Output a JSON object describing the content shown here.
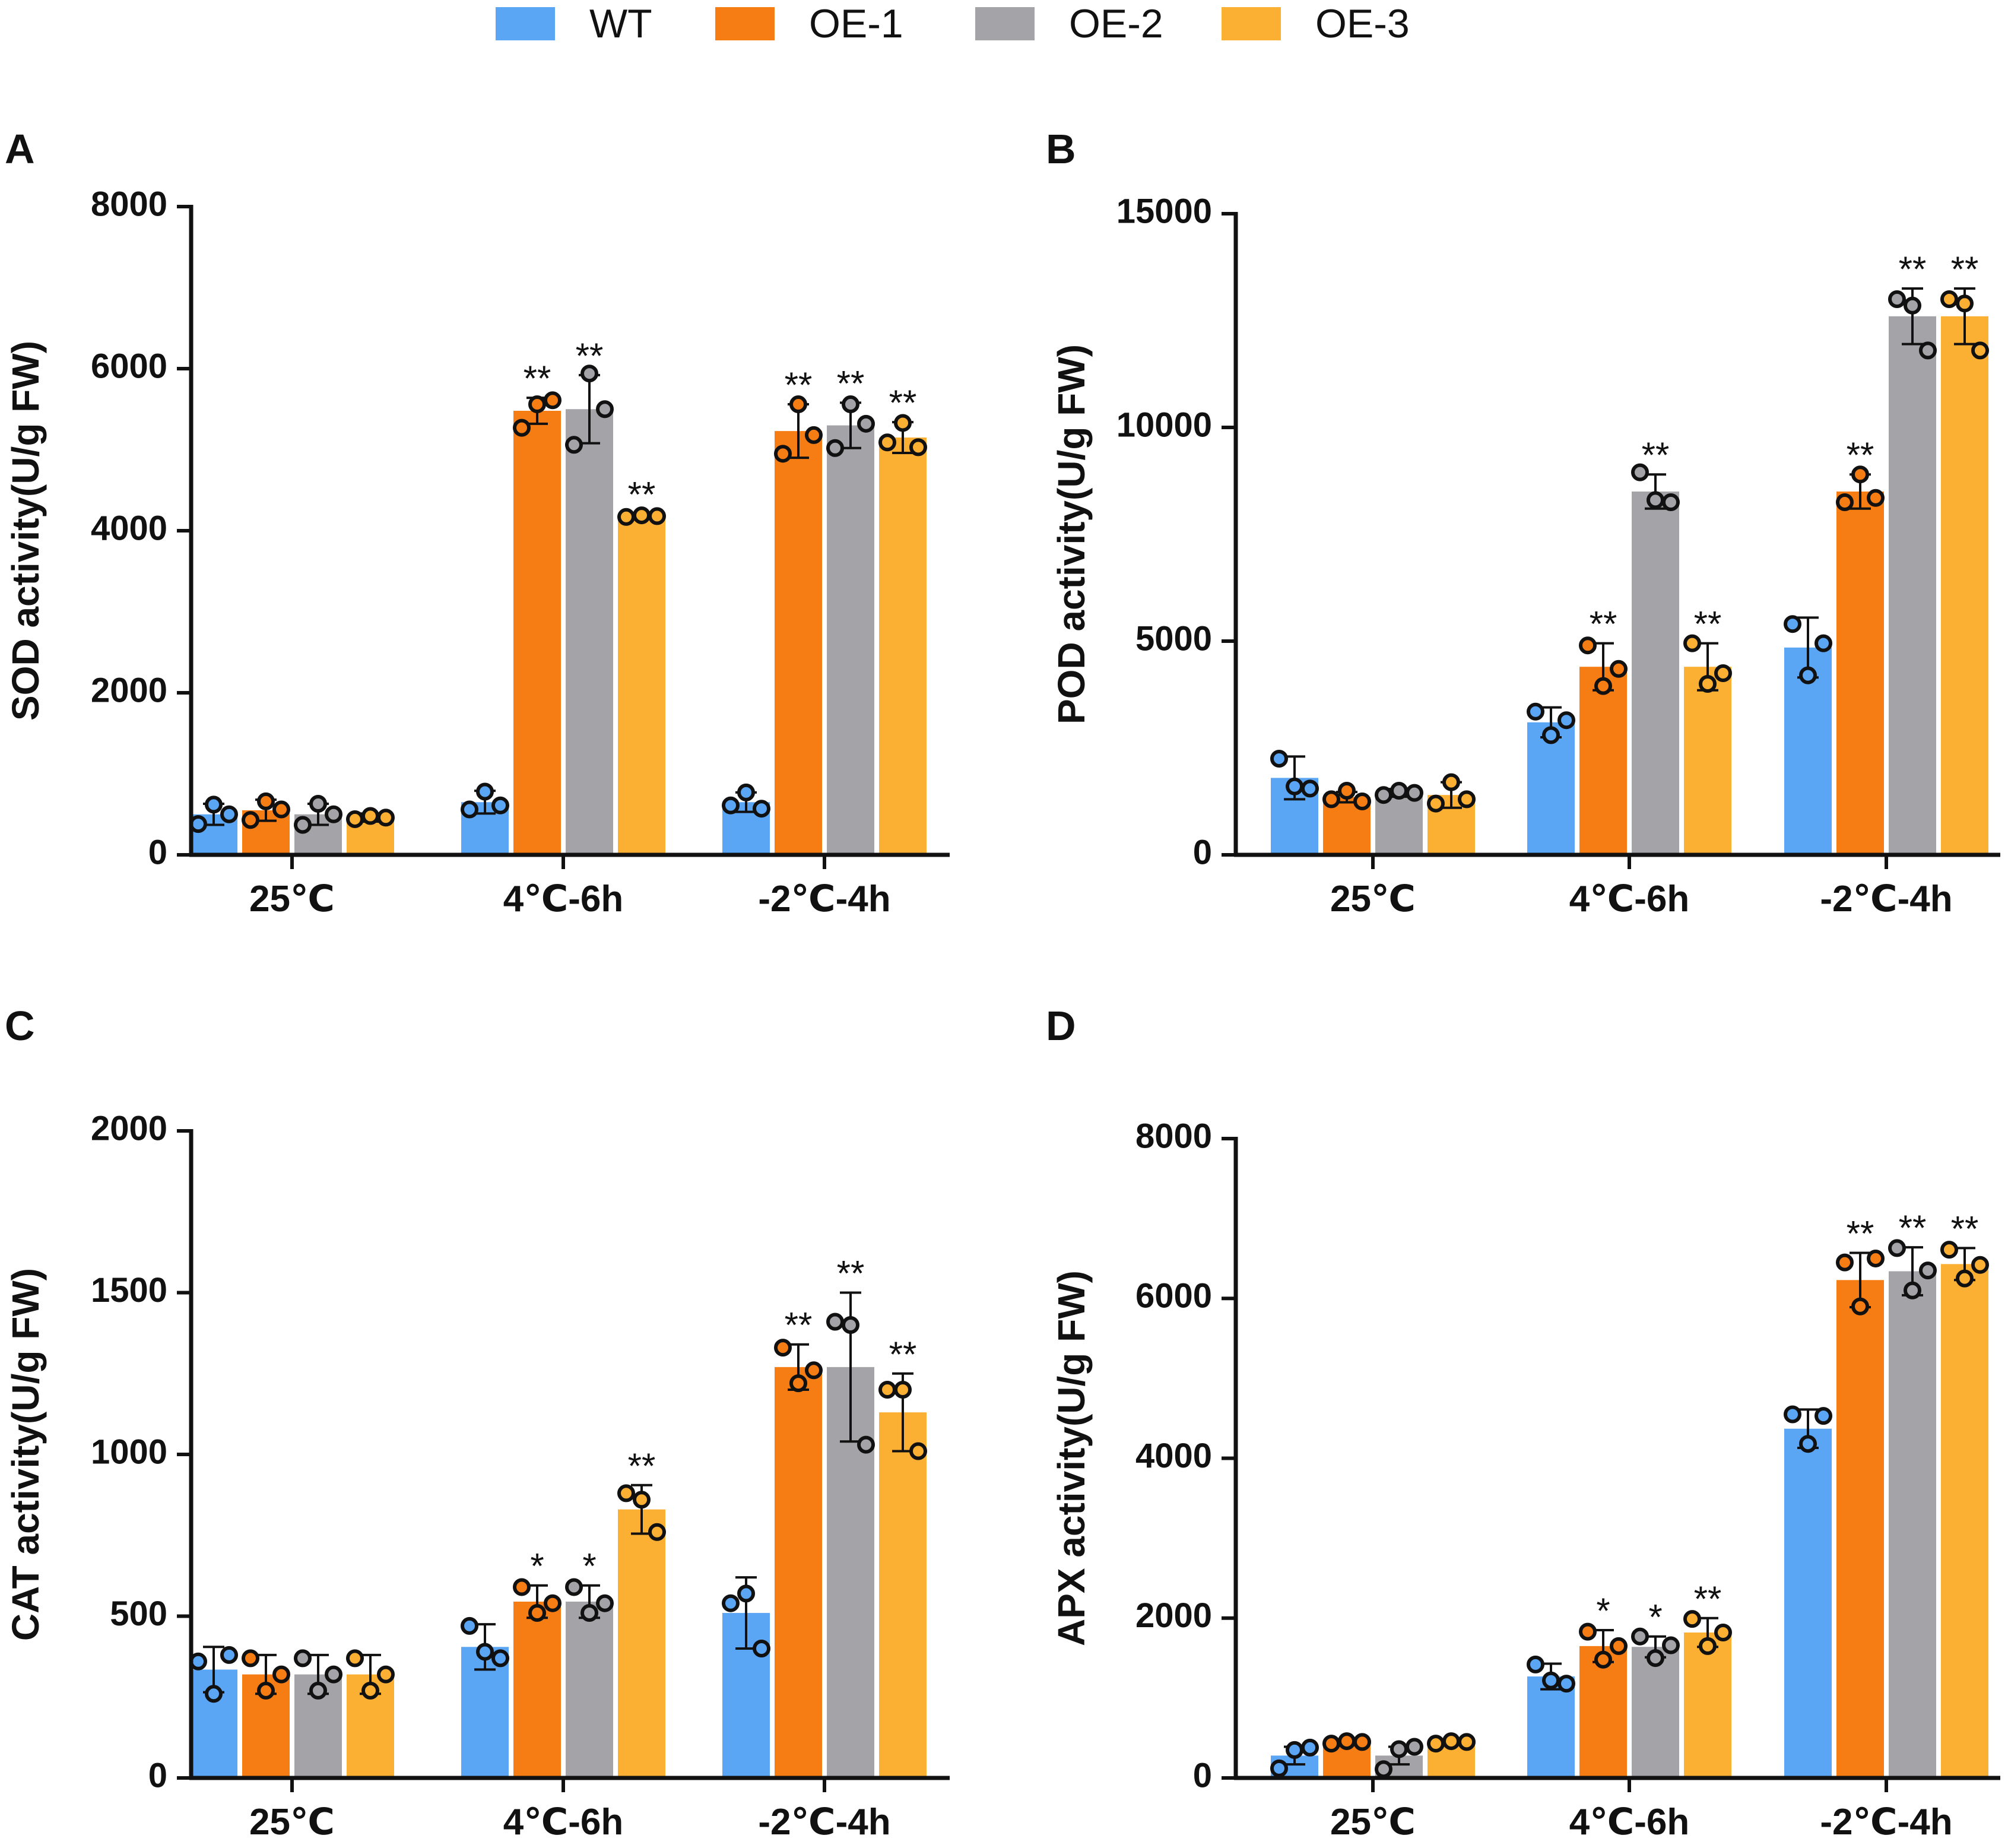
{
  "legend": [
    {
      "name": "WT",
      "color": "#5aa6f5"
    },
    {
      "name": "OE-1",
      "color": "#f57d14"
    },
    {
      "name": "OE-2",
      "color": "#a3a3a8"
    },
    {
      "name": "OE-3",
      "color": "#fbb034"
    }
  ],
  "chart_data": [
    {
      "panel": "A",
      "type": "bar",
      "ylabel": "SOD activity(U/g FW)",
      "categories": [
        "25℃",
        "4℃-6h",
        "-2℃-4h"
      ],
      "ylim": [
        0,
        8000
      ],
      "yticks": [
        0,
        2000,
        4000,
        6000,
        8000
      ],
      "series": [
        {
          "name": "WT",
          "values": [
            500,
            650,
            650
          ],
          "errors": [
            130,
            140,
            120
          ],
          "points": [
            [
              380,
              620,
              500
            ],
            [
              560,
              780,
              610
            ],
            [
              610,
              770,
              570
            ]
          ],
          "sig": [
            "",
            "",
            ""
          ]
        },
        {
          "name": "OE-1",
          "values": [
            550,
            5480,
            5230
          ],
          "errors": [
            130,
            160,
            330
          ],
          "points": [
            [
              430,
              660,
              560
            ],
            [
              5270,
              5560,
              5610
            ],
            [
              4950,
              5560,
              5180
            ]
          ],
          "sig": [
            "",
            "**",
            "**"
          ]
        },
        {
          "name": "OE-2",
          "values": [
            500,
            5500,
            5300
          ],
          "errors": [
            130,
            420,
            280
          ],
          "points": [
            [
              370,
              630,
              500
            ],
            [
              5060,
              5940,
              5500
            ],
            [
              5020,
              5560,
              5320
            ]
          ],
          "sig": [
            "",
            "**",
            "**"
          ]
        },
        {
          "name": "OE-3",
          "values": [
            460,
            4180,
            5150
          ],
          "errors": [
            50,
            30,
            190
          ],
          "points": [
            [
              440,
              480,
              460
            ],
            [
              4170,
              4190,
              4180
            ],
            [
              5090,
              5330,
              5030
            ]
          ],
          "sig": [
            "",
            "**",
            "**"
          ]
        }
      ]
    },
    {
      "panel": "B",
      "type": "bar",
      "ylabel": "POD activity(U/g FW)",
      "categories": [
        "25℃",
        "4℃-6h",
        "-2℃-4h"
      ],
      "ylim": [
        0,
        15000
      ],
      "yticks": [
        0,
        5000,
        10000,
        15000
      ],
      "series": [
        {
          "name": "WT",
          "values": [
            1800,
            3100,
            4850
          ],
          "errors": [
            500,
            350,
            700
          ],
          "points": [
            [
              2250,
              1600,
              1550
            ],
            [
              3350,
              2800,
              3150
            ],
            [
              5400,
              4200,
              4950
            ]
          ],
          "sig": [
            "",
            "",
            ""
          ]
        },
        {
          "name": "OE-1",
          "values": [
            1350,
            4400,
            8500
          ],
          "errors": [
            120,
            550,
            400
          ],
          "points": [
            [
              1300,
              1500,
              1250
            ],
            [
              4900,
              3950,
              4350
            ],
            [
              8250,
              8900,
              8350
            ]
          ],
          "sig": [
            "",
            "**",
            "**"
          ]
        },
        {
          "name": "OE-2",
          "values": [
            1450,
            8500,
            12600
          ],
          "errors": [
            90,
            400,
            650
          ],
          "points": [
            [
              1400,
              1500,
              1450
            ],
            [
              8950,
              8300,
              8250
            ],
            [
              13000,
              12850,
              11800
            ]
          ],
          "sig": [
            "",
            "**",
            "**"
          ]
        },
        {
          "name": "OE-3",
          "values": [
            1400,
            4400,
            12600
          ],
          "errors": [
            300,
            550,
            650
          ],
          "points": [
            [
              1200,
              1700,
              1300
            ],
            [
              4950,
              4000,
              4250
            ],
            [
              13000,
              12900,
              11800
            ]
          ],
          "sig": [
            "",
            "**",
            "**"
          ]
        }
      ]
    },
    {
      "panel": "C",
      "type": "bar",
      "ylabel": "CAT activity(U/g FW)",
      "categories": [
        "25℃",
        "4℃-6h",
        "-2℃-4h"
      ],
      "ylim": [
        0,
        2000
      ],
      "yticks": [
        0,
        500,
        1000,
        1500,
        2000
      ],
      "series": [
        {
          "name": "WT",
          "values": [
            335,
            405,
            510
          ],
          "errors": [
            70,
            70,
            110
          ],
          "points": [
            [
              360,
              260,
              380
            ],
            [
              470,
              390,
              370
            ],
            [
              540,
              570,
              400
            ]
          ],
          "sig": [
            "",
            "",
            ""
          ]
        },
        {
          "name": "OE-1",
          "values": [
            320,
            545,
            1270
          ],
          "errors": [
            60,
            50,
            70
          ],
          "points": [
            [
              370,
              270,
              320
            ],
            [
              590,
              510,
              540
            ],
            [
              1330,
              1220,
              1260
            ]
          ],
          "sig": [
            "",
            "*",
            "**"
          ]
        },
        {
          "name": "OE-2",
          "values": [
            320,
            545,
            1270
          ],
          "errors": [
            60,
            50,
            230
          ],
          "points": [
            [
              370,
              270,
              320
            ],
            [
              590,
              510,
              540
            ],
            [
              1410,
              1400,
              1030
            ]
          ],
          "sig": [
            "",
            "*",
            "**"
          ]
        },
        {
          "name": "OE-3",
          "values": [
            320,
            830,
            1130
          ],
          "errors": [
            60,
            75,
            120
          ],
          "points": [
            [
              370,
              270,
              320
            ],
            [
              880,
              860,
              760
            ],
            [
              1200,
              1200,
              1010
            ]
          ],
          "sig": [
            "",
            "**",
            "**"
          ]
        }
      ]
    },
    {
      "panel": "D",
      "type": "bar",
      "ylabel": "APX activity(U/g FW)",
      "categories": [
        "25℃",
        "4℃-6h",
        "-2℃-4h"
      ],
      "ylim": [
        0,
        8000
      ],
      "yticks": [
        0,
        2000,
        4000,
        6000,
        8000
      ],
      "series": [
        {
          "name": "WT",
          "values": [
            280,
            1270,
            4370
          ],
          "errors": [
            110,
            160,
            240
          ],
          "points": [
            [
              120,
              350,
              380
            ],
            [
              1420,
              1220,
              1180
            ],
            [
              4550,
              4180,
              4530
            ]
          ],
          "sig": [
            "",
            "",
            ""
          ]
        },
        {
          "name": "OE-1",
          "values": [
            450,
            1650,
            6230
          ],
          "errors": [
            30,
            200,
            340
          ],
          "points": [
            [
              430,
              460,
              450
            ],
            [
              1830,
              1480,
              1650
            ],
            [
              6450,
              5900,
              6500
            ]
          ],
          "sig": [
            "",
            "*",
            "**"
          ]
        },
        {
          "name": "OE-2",
          "values": [
            280,
            1640,
            6340
          ],
          "errors": [
            110,
            130,
            300
          ],
          "points": [
            [
              110,
              360,
              390
            ],
            [
              1770,
              1500,
              1660
            ],
            [
              6630,
              6100,
              6350
            ]
          ],
          "sig": [
            "",
            "*",
            "**"
          ]
        },
        {
          "name": "OE-3",
          "values": [
            450,
            1820,
            6430
          ],
          "errors": [
            30,
            180,
            200
          ],
          "points": [
            [
              430,
              460,
              450
            ],
            [
              1990,
              1650,
              1820
            ],
            [
              6610,
              6250,
              6420
            ]
          ],
          "sig": [
            "",
            "**",
            "**"
          ]
        }
      ]
    }
  ]
}
